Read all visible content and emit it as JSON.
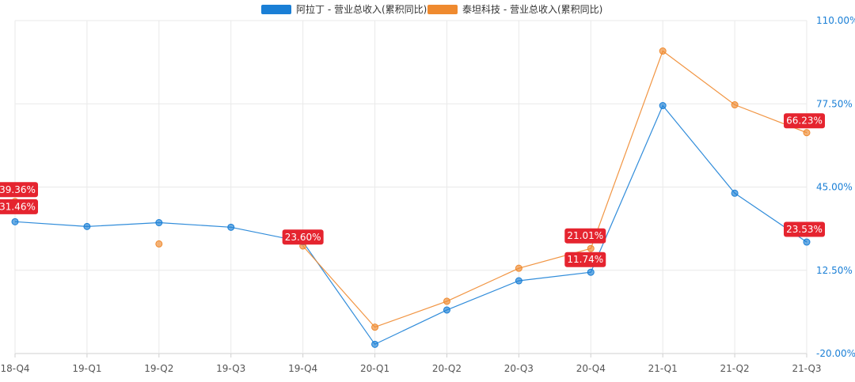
{
  "chart_data": {
    "type": "line",
    "categories": [
      "18-Q4",
      "19-Q1",
      "19-Q2",
      "19-Q3",
      "19-Q4",
      "20-Q1",
      "20-Q2",
      "20-Q3",
      "20-Q4",
      "21-Q1",
      "21-Q2",
      "21-Q3"
    ],
    "series": [
      {
        "name": "阿拉丁 - 营业总收入(累积同比)",
        "color": "#1a7fd6",
        "values": [
          31.46,
          29.6,
          31.1,
          29.3,
          23.6,
          -16.4,
          -3.0,
          8.4,
          11.74,
          76.8,
          42.6,
          23.53
        ],
        "connected": [
          true,
          true,
          true,
          true,
          true,
          true,
          true,
          true,
          true,
          true,
          true,
          true
        ]
      },
      {
        "name": "泰坦科技 - 营业总收入(累积同比)",
        "color": "#ef8a2f",
        "values": [
          39.36,
          null,
          22.8,
          null,
          22.0,
          -9.7,
          0.4,
          13.3,
          21.01,
          98.1,
          77.1,
          66.23
        ],
        "connected": [
          false,
          false,
          false,
          false,
          true,
          true,
          true,
          true,
          true,
          true,
          true,
          true
        ]
      }
    ],
    "ylim": [
      -20,
      110
    ],
    "yticks": [
      "110.00%",
      "77.50%",
      "45.00%",
      "12.50%",
      "-20.00%"
    ],
    "ytick_values": [
      110,
      77.5,
      45,
      12.5,
      -20
    ],
    "data_labels": [
      {
        "text": "39.36%",
        "series": 1,
        "index": 0
      },
      {
        "text": "31.46%",
        "series": 0,
        "index": 0
      },
      {
        "text": "23.60%",
        "series": 0,
        "index": 4
      },
      {
        "text": "21.01%",
        "series": 1,
        "index": 8
      },
      {
        "text": "11.74%",
        "series": 0,
        "index": 8
      },
      {
        "text": "66.23%",
        "series": 1,
        "index": 11
      },
      {
        "text": "23.53%",
        "series": 0,
        "index": 11
      }
    ],
    "label_color": "#e5242f",
    "grid": true,
    "legend_position": "top-center",
    "y_axis_side": "right"
  }
}
